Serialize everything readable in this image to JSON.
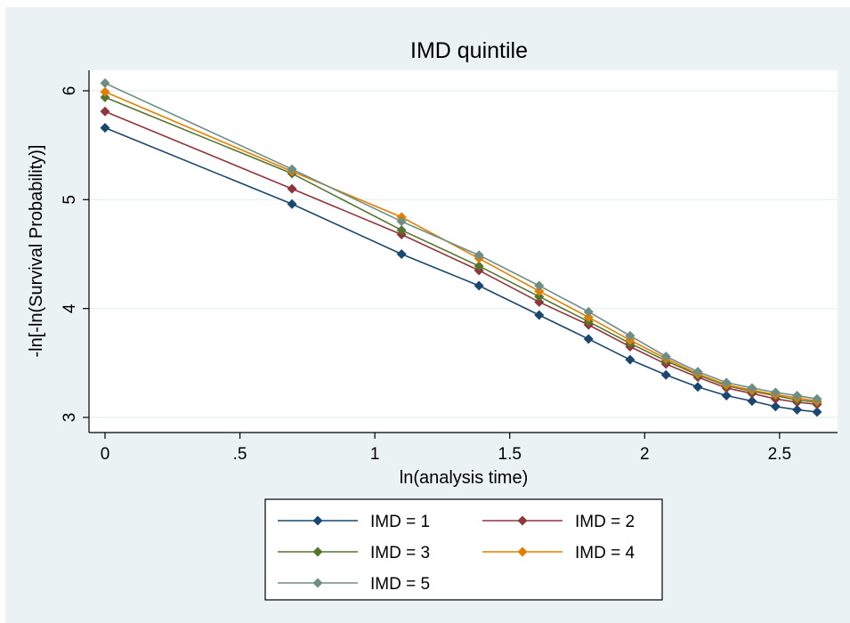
{
  "chart_data": {
    "type": "line",
    "title": "IMD quintile",
    "xlabel": "ln(analysis time)",
    "ylabel": "-ln[-ln(Survival Probability)]",
    "xlim": [
      0,
      2.65
    ],
    "ylim": [
      3,
      6.1
    ],
    "x_ticks": [
      {
        "value": 0,
        "label": "0"
      },
      {
        "value": 0.5,
        "label": ".5"
      },
      {
        "value": 1,
        "label": "1"
      },
      {
        "value": 1.5,
        "label": "1.5"
      },
      {
        "value": 2,
        "label": "2"
      },
      {
        "value": 2.5,
        "label": "2.5"
      }
    ],
    "y_ticks": [
      {
        "value": 3,
        "label": "3"
      },
      {
        "value": 4,
        "label": "4"
      },
      {
        "value": 5,
        "label": "5"
      },
      {
        "value": 6,
        "label": "6"
      }
    ],
    "grid": true,
    "legend_position": "bottom",
    "x": [
      0,
      0.693,
      1.099,
      1.386,
      1.609,
      1.792,
      1.946,
      2.079,
      2.197,
      2.303,
      2.398,
      2.485,
      2.565,
      2.639
    ],
    "series": [
      {
        "name": "IMD = 1",
        "color": "#1a476f",
        "values": [
          5.66,
          4.96,
          4.5,
          4.21,
          3.94,
          3.72,
          3.53,
          3.39,
          3.28,
          3.2,
          3.15,
          3.1,
          3.07,
          3.05
        ]
      },
      {
        "name": "IMD = 2",
        "color": "#90353b",
        "values": [
          5.81,
          5.1,
          4.68,
          4.35,
          4.06,
          3.85,
          3.65,
          3.49,
          3.37,
          3.27,
          3.22,
          3.17,
          3.14,
          3.12
        ]
      },
      {
        "name": "IMD = 3",
        "color": "#55752f",
        "values": [
          5.94,
          5.24,
          4.72,
          4.39,
          4.11,
          3.88,
          3.68,
          3.52,
          3.39,
          3.29,
          3.24,
          3.2,
          3.16,
          3.14
        ]
      },
      {
        "name": "IMD = 4",
        "color": "#e37e00",
        "values": [
          5.99,
          5.26,
          4.84,
          4.46,
          4.16,
          3.92,
          3.71,
          3.54,
          3.4,
          3.3,
          3.25,
          3.21,
          3.18,
          3.15
        ]
      },
      {
        "name": "IMD = 5",
        "color": "#6e8e84",
        "values": [
          6.07,
          5.28,
          4.8,
          4.49,
          4.21,
          3.97,
          3.75,
          3.56,
          3.42,
          3.32,
          3.27,
          3.23,
          3.2,
          3.17
        ]
      }
    ]
  }
}
